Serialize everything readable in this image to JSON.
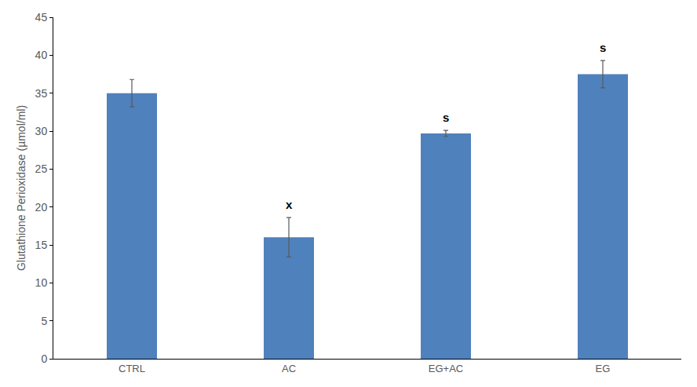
{
  "chart_data": {
    "type": "bar",
    "y_label": "Glutathione Perioxidase (µmol/ml)",
    "categories": [
      "CTRL",
      "AC",
      "EG+AC",
      "EG"
    ],
    "values": [
      35,
      16,
      29.7,
      37.5
    ],
    "errors": [
      1.8,
      2.6,
      0.4,
      1.8
    ],
    "color": "#4f81bd",
    "ylim": [
      0,
      45
    ],
    "yticks": [
      0,
      5,
      10,
      15,
      20,
      25,
      30,
      35,
      40,
      45
    ],
    "grid": false,
    "annotations": [
      {
        "x": "AC",
        "text": "x"
      },
      {
        "x": "EG+AC",
        "text": "s"
      },
      {
        "x": "EG",
        "text": "s"
      }
    ]
  }
}
